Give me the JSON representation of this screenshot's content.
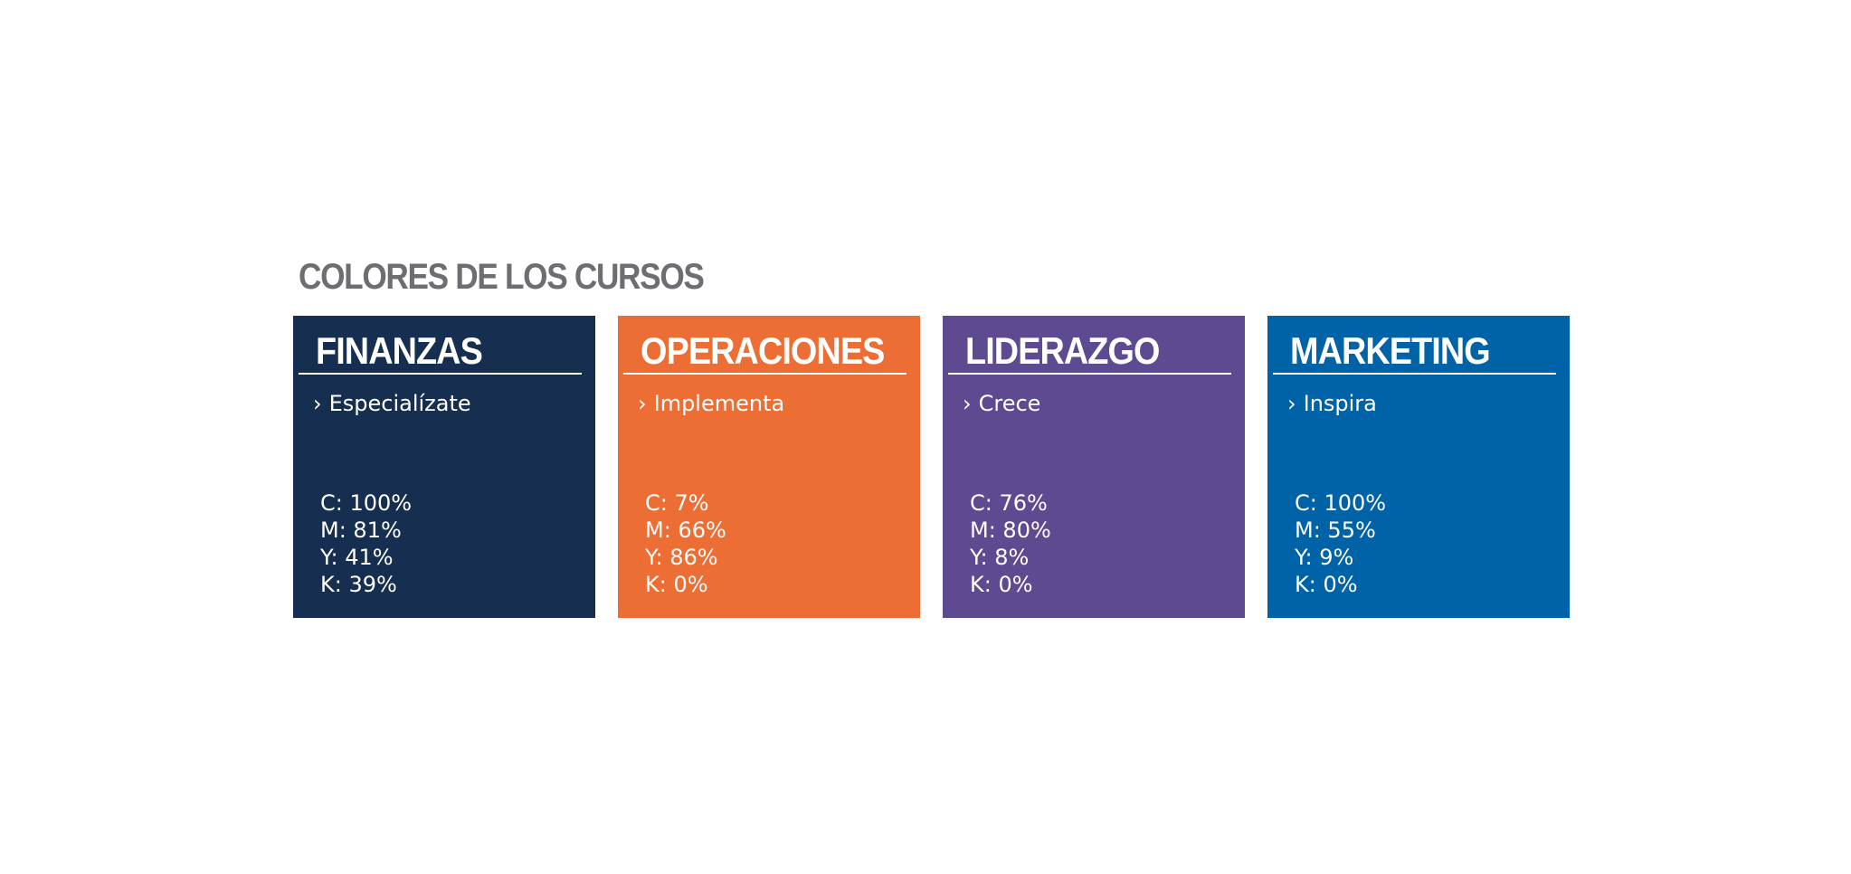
{
  "heading": "COLORES DE LOS CURSOS",
  "cards": [
    {
      "title": "FINANZAS",
      "tagline": "Especialízate",
      "color": "#162e4f",
      "cmyk": [
        "C: 100%",
        "M: 81%",
        "Y: 41%",
        "K: 39%"
      ]
    },
    {
      "title": "OPERACIONES",
      "tagline": "Implementa",
      "color": "#ec6e35",
      "cmyk": [
        "C: 7%",
        "M: 66%",
        "Y: 86%",
        "K: 0%"
      ]
    },
    {
      "title": "LIDERAZGO",
      "tagline": "Crece",
      "color": "#5d4a90",
      "cmyk": [
        "C: 76%",
        "M: 80%",
        "Y: 8%",
        "K: 0%"
      ]
    },
    {
      "title": "MARKETING",
      "tagline": "Inspira",
      "color": "#0062a7",
      "cmyk": [
        "C: 100%",
        "M: 55%",
        "Y: 9%",
        "K: 0%"
      ]
    }
  ],
  "icons": {
    "tagline_icon": "chevron-right-icon"
  }
}
